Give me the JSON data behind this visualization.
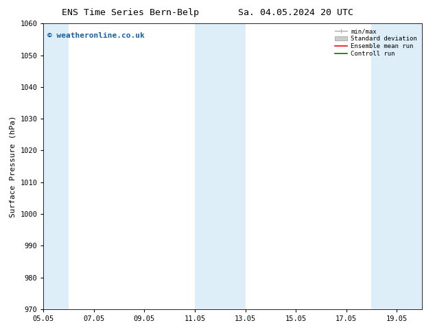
{
  "title_left": "ENS Time Series Bern-Belp",
  "title_right": "Sa. 04.05.2024 20 UTC",
  "ylabel": "Surface Pressure (hPa)",
  "ylim": [
    970,
    1060
  ],
  "yticks": [
    970,
    980,
    990,
    1000,
    1010,
    1020,
    1030,
    1040,
    1050,
    1060
  ],
  "xlim": [
    0,
    15
  ],
  "xtick_labels": [
    "05.05",
    "07.05",
    "09.05",
    "11.05",
    "13.05",
    "15.05",
    "17.05",
    "19.05"
  ],
  "xtick_positions": [
    0,
    2,
    4,
    6,
    8,
    10,
    12,
    14
  ],
  "shaded_bands": [
    {
      "x_start": 0.0,
      "x_end": 1.0,
      "color": "#ddeef8"
    },
    {
      "x_start": 6.0,
      "x_end": 8.0,
      "color": "#ddeef8"
    },
    {
      "x_start": 13.0,
      "x_end": 15.0,
      "color": "#ddeef8"
    }
  ],
  "watermark_text": "© weatheronline.co.uk",
  "watermark_color": "#1560a0",
  "watermark_fontsize": 8,
  "legend_items": [
    {
      "label": "min/max",
      "color": "#aaaaaa",
      "style": "minmax"
    },
    {
      "label": "Standard deviation",
      "color": "#cccccc",
      "style": "stddev"
    },
    {
      "label": "Ensemble mean run",
      "color": "#ff0000",
      "style": "line"
    },
    {
      "label": "Controll run",
      "color": "#007700",
      "style": "line"
    }
  ],
  "bg_color": "#ffffff",
  "axis_fontsize": 7.5,
  "title_fontsize": 9.5,
  "ylabel_fontsize": 8
}
